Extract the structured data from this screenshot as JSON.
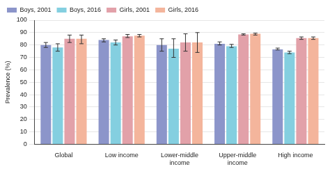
{
  "chart_data": {
    "type": "bar",
    "y_label": "Prevalence (%)",
    "categories": [
      "Global",
      "Low income",
      "Lower-middle income",
      "Upper-middle income",
      "High income"
    ],
    "series": [
      {
        "name": "Boys, 2001",
        "color": "#8c95ca",
        "values": [
          80,
          84,
          80,
          81,
          76.5
        ],
        "error_bars": [
          [
            78,
            82
          ],
          [
            82.5,
            85
          ],
          [
            75,
            85
          ],
          [
            80,
            82.5
          ],
          [
            76,
            77.5
          ]
        ]
      },
      {
        "name": "Boys, 2016",
        "color": "#84cfe0",
        "values": [
          78,
          82,
          77,
          79,
          74
        ],
        "error_bars": [
          [
            75,
            81
          ],
          [
            80,
            84
          ],
          [
            70,
            85
          ],
          [
            78,
            80.5
          ],
          [
            73,
            75
          ]
        ]
      },
      {
        "name": "Girls, 2001",
        "color": "#e2a1a9",
        "values": [
          85,
          87,
          82,
          88.5,
          85.5
        ],
        "error_bars": [
          [
            82,
            88
          ],
          [
            86,
            88.5
          ],
          [
            75,
            89
          ],
          [
            88,
            89
          ],
          [
            84.5,
            86.5
          ]
        ]
      },
      {
        "name": "Girls, 2016",
        "color": "#f4b59c",
        "values": [
          85,
          87.5,
          82,
          89,
          85.5
        ],
        "error_bars": [
          [
            81,
            88
          ],
          [
            86.5,
            88.5
          ],
          [
            74,
            90
          ],
          [
            88,
            89.5
          ],
          [
            84.5,
            86.5
          ]
        ]
      }
    ],
    "ylim": [
      0,
      100
    ],
    "yticks": [
      0,
      10,
      20,
      30,
      40,
      50,
      60,
      70,
      80,
      90,
      100
    ],
    "grid": true,
    "legend": "top-left"
  }
}
